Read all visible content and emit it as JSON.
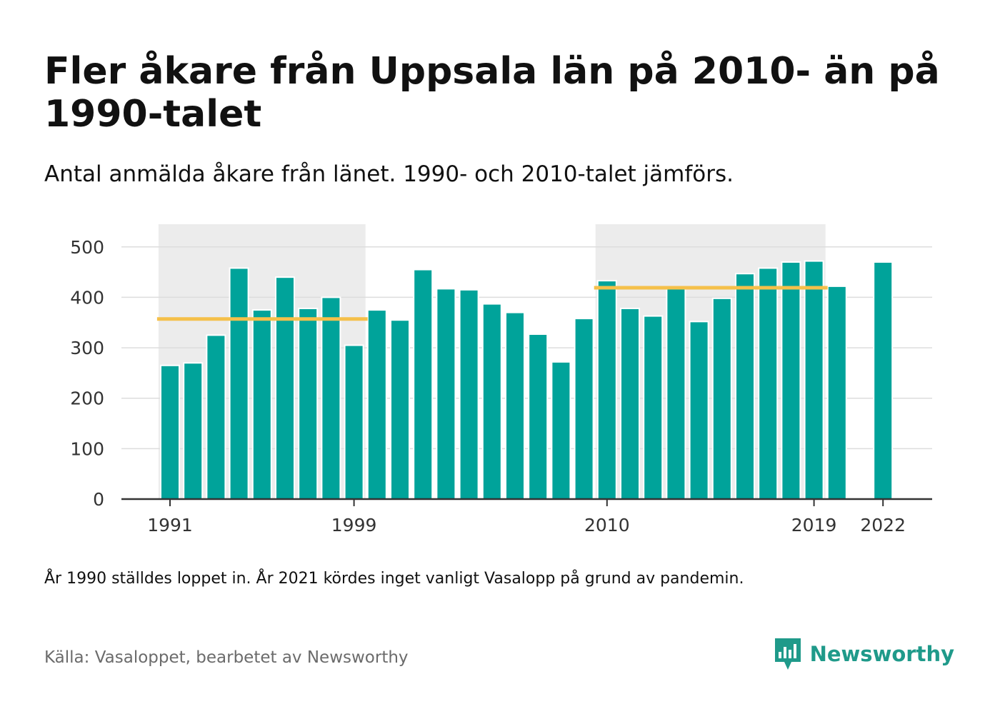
{
  "header": {
    "title": "Fler åkare från Uppsala län på 2010- än på 1990-talet",
    "subtitle": "Antal anmälda åkare från länet. 1990- och 2010-talet jämförs."
  },
  "footer": {
    "note": "År 1990 ställdes loppet in. År 2021 kördes inget vanligt Vasalopp på grund av pandemin.",
    "source": "Källa: Vasaloppet, bearbetet av Newsworthy",
    "brand": "Newsworthy",
    "brand_icon": "newsworthy-logo-icon"
  },
  "colors": {
    "bar": "#00a39a",
    "average_line": "#f5c04a",
    "decade_band": "#ececec",
    "grid": "#dddddd",
    "axis": "#333333",
    "brand": "#1f9a8a"
  },
  "chart_data": {
    "type": "bar",
    "title": "Fler åkare från Uppsala län på 2010- än på 1990-talet",
    "subtitle": "Antal anmälda åkare från länet. 1990- och 2010-talet jämförs.",
    "xlabel": "",
    "ylabel": "",
    "ylim": [
      0,
      545
    ],
    "yticks": [
      0,
      100,
      200,
      300,
      400,
      500
    ],
    "xtick_labels": [
      "1991",
      "1999",
      "2010",
      "2019",
      "2022"
    ],
    "grid": true,
    "legend": "none",
    "categories": [
      "1991",
      "1992",
      "1993",
      "1994",
      "1995",
      "1996",
      "1997",
      "1998",
      "1999",
      "2000",
      "2001",
      "2002",
      "2003",
      "2004",
      "2005",
      "2006",
      "2007",
      "2008",
      "2009",
      "2010",
      "2011",
      "2012",
      "2013",
      "2014",
      "2015",
      "2016",
      "2017",
      "2018",
      "2019",
      "2020",
      "2021",
      "2022"
    ],
    "values": [
      265,
      270,
      325,
      458,
      375,
      440,
      378,
      400,
      305,
      375,
      355,
      455,
      417,
      415,
      387,
      370,
      327,
      272,
      358,
      433,
      378,
      363,
      420,
      352,
      398,
      447,
      458,
      470,
      472,
      422,
      null,
      470
    ],
    "highlight_ranges": [
      {
        "from": "1991",
        "to": "1999",
        "average": 357
      },
      {
        "from": "2010",
        "to": "2019",
        "average": 419
      }
    ]
  }
}
